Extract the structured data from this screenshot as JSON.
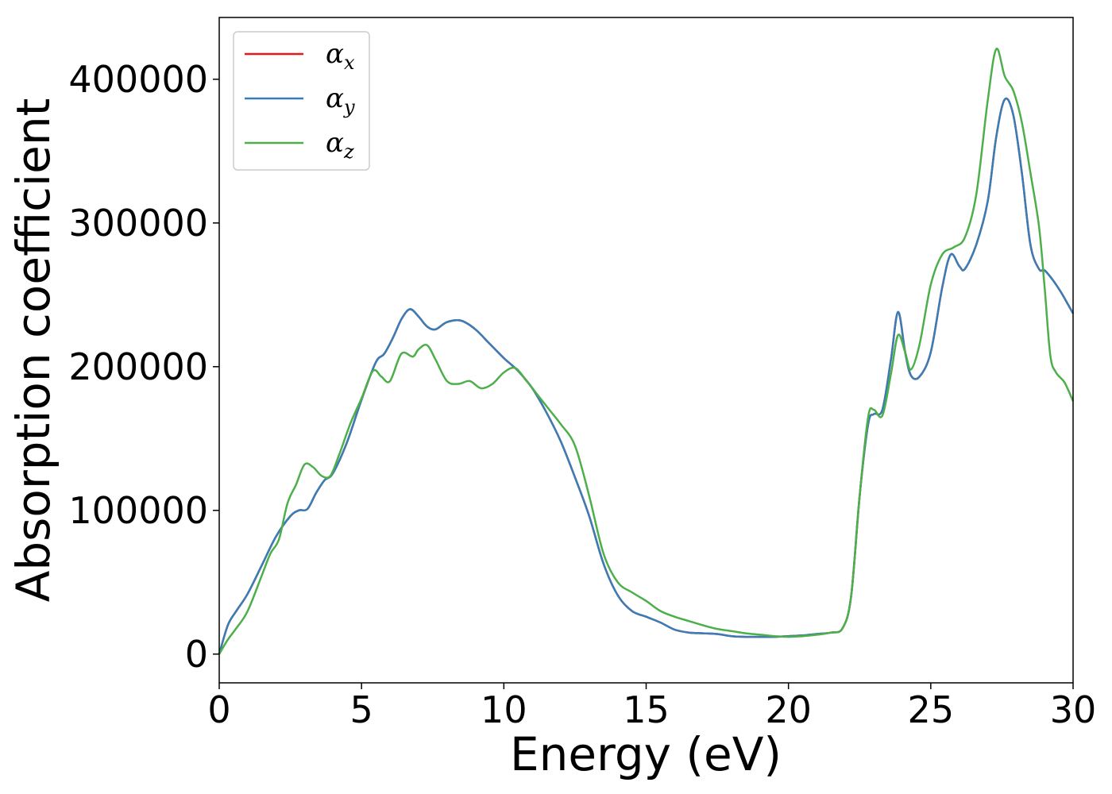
{
  "chart_data": {
    "type": "line",
    "title": "",
    "xlabel": "Energy (eV)",
    "ylabel": "Absorption coefficient",
    "xlim": [
      0,
      30
    ],
    "ylim": [
      -20000,
      443000
    ],
    "xticks": [
      0,
      5,
      10,
      15,
      20,
      25,
      30
    ],
    "xtick_labels": [
      "0",
      "5",
      "10",
      "15",
      "20",
      "25",
      "30"
    ],
    "yticks": [
      0,
      100000,
      200000,
      300000,
      400000
    ],
    "ytick_labels": [
      "0",
      "100000",
      "200000",
      "300000",
      "400000"
    ],
    "grid": false,
    "legend": {
      "placement": "top-left"
    },
    "series": [
      {
        "name": "α",
        "subscript": "x",
        "color": "#e41a1c",
        "x": [
          0,
          0.3,
          0.6,
          1.0,
          1.5,
          2.0,
          2.5,
          2.8,
          3.1,
          3.4,
          3.7,
          4.0,
          4.5,
          5.0,
          5.5,
          5.8,
          6.1,
          6.4,
          6.7,
          7.0,
          7.3,
          7.6,
          8.0,
          8.5,
          9.0,
          9.5,
          10.0,
          10.5,
          11.0,
          11.5,
          12.0,
          12.5,
          13.0,
          13.5,
          14.0,
          14.5,
          15.0,
          15.5,
          16.0,
          16.5,
          17.0,
          17.5,
          18.0,
          18.5,
          19.0,
          19.5,
          20.0,
          20.5,
          21.0,
          21.5,
          21.9,
          22.2,
          22.5,
          22.8,
          23.0,
          23.3,
          23.6,
          23.85,
          24.1,
          24.3,
          24.6,
          25.0,
          25.4,
          25.7,
          26.0,
          26.2,
          26.6,
          27.0,
          27.3,
          27.6,
          27.9,
          28.2,
          28.5,
          28.8,
          29.0,
          29.3,
          29.6,
          30.0
        ],
        "values": [
          0,
          20000,
          30000,
          42000,
          62000,
          82000,
          96000,
          100000,
          101000,
          112000,
          121000,
          126000,
          148000,
          177000,
          203000,
          209000,
          220000,
          233000,
          240000,
          235000,
          228000,
          226000,
          231000,
          232000,
          226000,
          216000,
          206000,
          197000,
          185000,
          168000,
          148000,
          123000,
          96000,
          63000,
          41000,
          30000,
          26000,
          22000,
          17000,
          15000,
          14500,
          14000,
          12500,
          12000,
          12000,
          12000,
          12500,
          13000,
          14000,
          15000,
          18000,
          40000,
          110000,
          160000,
          167000,
          170000,
          205000,
          238000,
          210000,
          194000,
          193000,
          210000,
          255000,
          278000,
          270000,
          268000,
          285000,
          315000,
          360000,
          386000,
          375000,
          335000,
          285000,
          268000,
          267000,
          260000,
          251000,
          237000
        ]
      },
      {
        "name": "α",
        "subscript": "y",
        "color": "#377eb8",
        "x": [
          0,
          0.3,
          0.6,
          1.0,
          1.5,
          2.0,
          2.5,
          2.8,
          3.1,
          3.4,
          3.7,
          4.0,
          4.5,
          5.0,
          5.5,
          5.8,
          6.1,
          6.4,
          6.7,
          7.0,
          7.3,
          7.6,
          8.0,
          8.5,
          9.0,
          9.5,
          10.0,
          10.5,
          11.0,
          11.5,
          12.0,
          12.5,
          13.0,
          13.5,
          14.0,
          14.5,
          15.0,
          15.5,
          16.0,
          16.5,
          17.0,
          17.5,
          18.0,
          18.5,
          19.0,
          19.5,
          20.0,
          20.5,
          21.0,
          21.5,
          21.9,
          22.2,
          22.5,
          22.8,
          23.0,
          23.3,
          23.6,
          23.85,
          24.1,
          24.3,
          24.6,
          25.0,
          25.4,
          25.7,
          26.0,
          26.2,
          26.6,
          27.0,
          27.3,
          27.6,
          27.9,
          28.2,
          28.5,
          28.8,
          29.0,
          29.3,
          29.6,
          30.0
        ],
        "values": [
          0,
          20000,
          30000,
          42000,
          62000,
          82000,
          96000,
          100000,
          101000,
          112000,
          121000,
          126000,
          148000,
          177000,
          203000,
          209000,
          220000,
          233000,
          240000,
          235000,
          228000,
          226000,
          231000,
          232000,
          226000,
          216000,
          206000,
          197000,
          185000,
          168000,
          148000,
          123000,
          96000,
          63000,
          41000,
          30000,
          26000,
          22000,
          17000,
          15000,
          14500,
          14000,
          12500,
          12000,
          12000,
          12000,
          12500,
          13000,
          14000,
          15000,
          18000,
          40000,
          110000,
          160000,
          167000,
          170000,
          205000,
          238000,
          210000,
          194000,
          193000,
          210000,
          255000,
          278000,
          270000,
          268000,
          285000,
          315000,
          360000,
          386000,
          375000,
          335000,
          285000,
          268000,
          267000,
          260000,
          251000,
          237000
        ]
      },
      {
        "name": "α",
        "subscript": "z",
        "color": "#4daf4a",
        "x": [
          0,
          0.3,
          0.6,
          1.0,
          1.5,
          1.8,
          2.1,
          2.4,
          2.7,
          3.0,
          3.3,
          3.6,
          3.9,
          4.2,
          4.6,
          5.0,
          5.4,
          5.7,
          6.0,
          6.4,
          6.8,
          7.0,
          7.3,
          7.6,
          8.0,
          8.4,
          8.8,
          9.2,
          9.6,
          10.0,
          10.4,
          10.8,
          11.2,
          11.6,
          12.0,
          12.5,
          13.0,
          13.5,
          14.0,
          14.5,
          15.0,
          15.5,
          16.0,
          16.5,
          17.0,
          17.5,
          18.0,
          18.5,
          19.0,
          19.5,
          20.0,
          20.5,
          21.0,
          21.5,
          21.9,
          22.2,
          22.5,
          22.8,
          23.0,
          23.3,
          23.6,
          23.85,
          24.1,
          24.3,
          24.6,
          25.0,
          25.4,
          25.8,
          26.2,
          26.6,
          27.0,
          27.3,
          27.6,
          27.9,
          28.2,
          28.5,
          28.8,
          29.0,
          29.2,
          29.4,
          29.7,
          30.0
        ],
        "values": [
          0,
          10000,
          18000,
          30000,
          55000,
          70000,
          80000,
          105000,
          118000,
          132000,
          130000,
          124000,
          124000,
          138000,
          160000,
          178000,
          197000,
          193000,
          190000,
          209000,
          207000,
          212000,
          215000,
          205000,
          190000,
          188000,
          190000,
          185000,
          188000,
          196000,
          199000,
          190000,
          180000,
          170000,
          160000,
          145000,
          110000,
          70000,
          50000,
          43000,
          37000,
          30000,
          26000,
          23000,
          20000,
          17500,
          16000,
          14500,
          13500,
          12500,
          12000,
          12500,
          13500,
          15000,
          18000,
          40000,
          110000,
          165000,
          170000,
          166000,
          195000,
          222000,
          210000,
          198000,
          215000,
          257000,
          278000,
          283000,
          290000,
          320000,
          385000,
          421000,
          402000,
          392000,
          370000,
          335000,
          298000,
          255000,
          208000,
          196000,
          189000,
          176000
        ]
      }
    ]
  }
}
